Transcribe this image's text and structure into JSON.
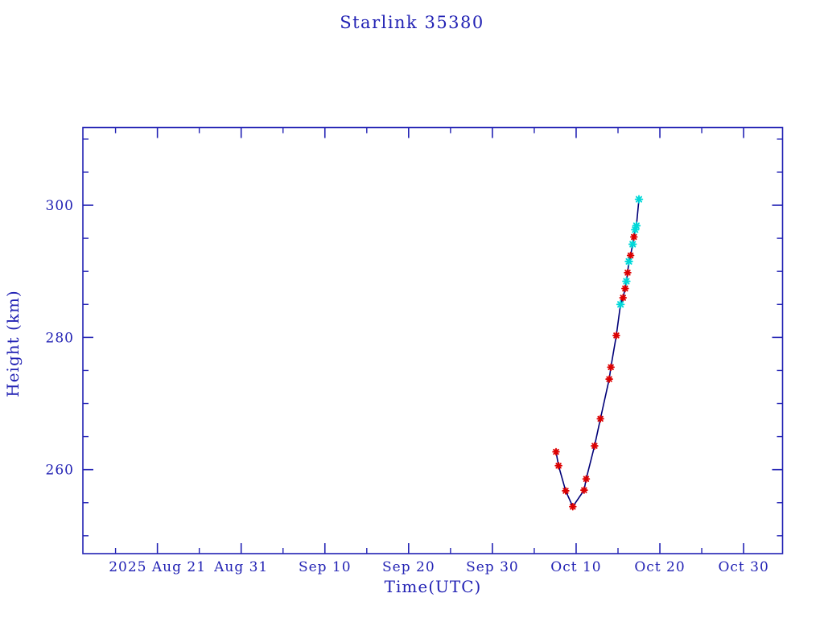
{
  "page": {
    "background": "#ffffff"
  },
  "chart_data": {
    "type": "line",
    "title": "Starlink 35380",
    "xlabel": "Time(UTC)",
    "ylabel": "Height (km)",
    "x_unit": "days after 2025 Aug 21 00:00 UTC",
    "xlim": [
      -8.9,
      74.65
    ],
    "ylim": [
      247.3,
      311.75
    ],
    "grid": false,
    "legend": "none",
    "colors": {
      "background": "#ffffff",
      "axis": "#2222b4",
      "text": "#2222b4",
      "track_line": "#000078",
      "red_marker": "#dd0000",
      "cyan_marker": "#00d9d9"
    },
    "x_major_ticks": [
      {
        "t": 0,
        "label": "2025 Aug 21"
      },
      {
        "t": 10,
        "label": "Aug 31"
      },
      {
        "t": 20,
        "label": "Sep 10"
      },
      {
        "t": 30,
        "label": "Sep 20"
      },
      {
        "t": 40,
        "label": "Sep 30"
      },
      {
        "t": 50,
        "label": "Oct 10"
      },
      {
        "t": 60,
        "label": "Oct 20"
      },
      {
        "t": 70,
        "label": "Oct 30"
      }
    ],
    "x_minor_ticks": [
      -5,
      5,
      15,
      25,
      35,
      45,
      55,
      65
    ],
    "y_major_ticks": [
      {
        "v": 260,
        "label": "260"
      },
      {
        "v": 280,
        "label": "280"
      },
      {
        "v": 300,
        "label": "300"
      }
    ],
    "y_minor_ticks": [
      250,
      255,
      265,
      270,
      275,
      285,
      290,
      295,
      305,
      310
    ],
    "series": [
      {
        "name": "height-track-line",
        "type": "line",
        "color_key": "track_line",
        "stroke_width": 1.6,
        "points": [
          [
            47.6,
            262.7
          ],
          [
            47.9,
            260.6
          ],
          [
            48.75,
            256.8
          ],
          [
            49.6,
            254.4
          ],
          [
            50.95,
            256.9
          ],
          [
            51.2,
            258.6
          ],
          [
            52.2,
            263.6
          ],
          [
            52.9,
            267.7
          ],
          [
            53.95,
            273.7
          ],
          [
            54.15,
            275.5
          ],
          [
            54.8,
            280.3
          ],
          [
            55.3,
            285.0
          ],
          [
            55.6,
            286.0
          ],
          [
            55.85,
            287.4
          ],
          [
            56.0,
            288.5
          ],
          [
            56.15,
            289.8
          ],
          [
            56.3,
            291.5
          ],
          [
            56.5,
            292.4
          ],
          [
            56.75,
            294.1
          ],
          [
            56.9,
            295.2
          ],
          [
            57.05,
            296.3
          ],
          [
            57.2,
            296.9
          ],
          [
            57.5,
            300.9
          ]
        ]
      },
      {
        "name": "red-asterisk-markers",
        "type": "scatter",
        "marker": "asterisk",
        "color_key": "red_marker",
        "size": 3.8,
        "points": [
          [
            47.6,
            262.7
          ],
          [
            47.9,
            260.6
          ],
          [
            48.75,
            256.8
          ],
          [
            49.6,
            254.4
          ],
          [
            50.95,
            256.9
          ],
          [
            51.2,
            258.6
          ],
          [
            52.2,
            263.6
          ],
          [
            52.9,
            267.7
          ],
          [
            53.95,
            273.7
          ],
          [
            54.15,
            275.5
          ],
          [
            54.8,
            280.3
          ],
          [
            55.6,
            286.0
          ],
          [
            55.85,
            287.4
          ],
          [
            56.15,
            289.8
          ],
          [
            56.5,
            292.4
          ],
          [
            56.9,
            295.2
          ]
        ]
      },
      {
        "name": "cyan-asterisk-markers",
        "type": "scatter",
        "marker": "asterisk",
        "color_key": "cyan_marker",
        "size": 4.3,
        "points": [
          [
            55.3,
            285.0
          ],
          [
            56.0,
            288.5
          ],
          [
            56.3,
            291.5
          ],
          [
            56.75,
            294.1
          ],
          [
            57.05,
            296.3
          ],
          [
            57.2,
            296.9
          ],
          [
            57.5,
            300.9
          ]
        ]
      }
    ]
  }
}
